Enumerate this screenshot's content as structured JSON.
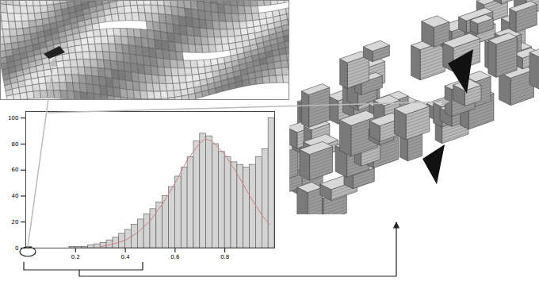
{
  "chart_data": {
    "type": "histogram",
    "bins": [
      0,
      0.025,
      0.05,
      0.075,
      0.1,
      0.125,
      0.15,
      0.175,
      0.2,
      0.225,
      0.25,
      0.275,
      0.3,
      0.325,
      0.35,
      0.375,
      0.4,
      0.425,
      0.45,
      0.475,
      0.5,
      0.525,
      0.55,
      0.575,
      0.6,
      0.625,
      0.65,
      0.675,
      0.7,
      0.725,
      0.75,
      0.775,
      0.8,
      0.825,
      0.85,
      0.875,
      0.9,
      0.925,
      0.95,
      0.975,
      1
    ],
    "counts": [
      1,
      0,
      0,
      0,
      0,
      0,
      0,
      1,
      1,
      1,
      2,
      3,
      4,
      6,
      8,
      11,
      14,
      18,
      22,
      26,
      30,
      35,
      40,
      47,
      55,
      62,
      70,
      82,
      88,
      86,
      80,
      74,
      70,
      66,
      64,
      62,
      64,
      70,
      76,
      100
    ],
    "color": "#d4d4d4",
    "series": [
      {
        "type": "line",
        "color": "#d08080",
        "x": [
          0.3,
          0.35,
          0.4,
          0.45,
          0.5,
          0.55,
          0.6,
          0.65,
          0.7,
          0.72,
          0.75,
          0.8,
          0.85,
          0.9,
          0.95,
          0.98
        ],
        "values": [
          1,
          3,
          6,
          12,
          21,
          34,
          50,
          68,
          81,
          84,
          82,
          72,
          57,
          40,
          25,
          18
        ]
      }
    ],
    "xlim": [
      0,
      1
    ],
    "xticks": [
      0.2,
      0.4,
      0.6,
      0.8
    ],
    "ylim": [
      0,
      105
    ],
    "yticks": [
      0,
      20,
      40,
      60,
      80,
      100
    ]
  }
}
